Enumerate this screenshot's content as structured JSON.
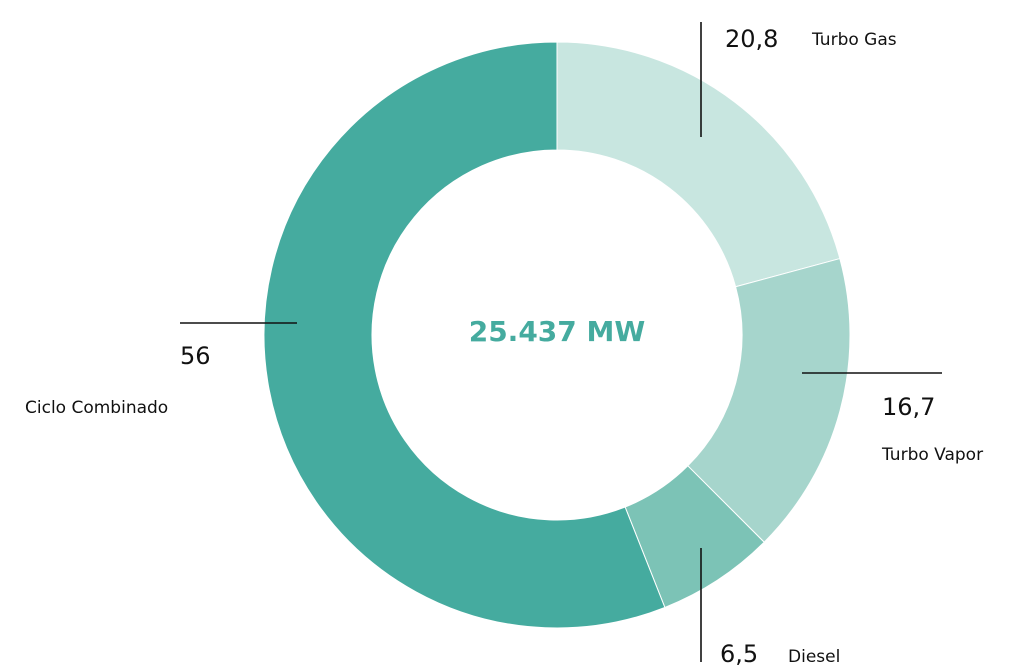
{
  "chart_data": {
    "type": "pie",
    "donut": true,
    "center_text": "25.437 MW",
    "categories": [
      "Turbo Gas",
      "Turbo Vapor",
      "Diesel",
      "Ciclo Combinado"
    ],
    "values": [
      20.8,
      16.7,
      6.5,
      56
    ],
    "value_labels": [
      "20,8",
      "16,7",
      "6,5",
      "56"
    ],
    "colors": [
      "#c8e6e0",
      "#a6d5cc",
      "#7cc3b6",
      "#45ab9f"
    ]
  }
}
